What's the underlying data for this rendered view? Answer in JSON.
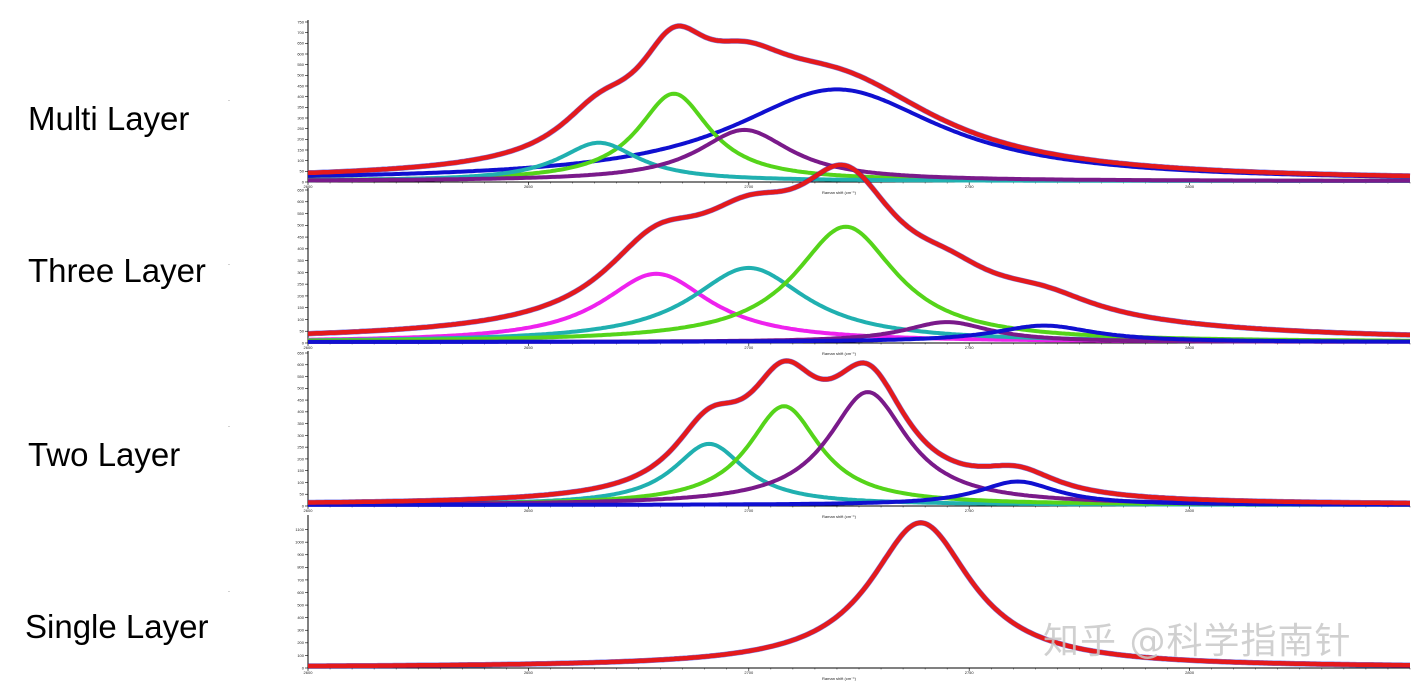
{
  "labels": {
    "multi": "Multi Layer",
    "three": "Three Layer",
    "two": "Two Layer",
    "single": "Single Layer"
  },
  "watermark": "知乎 @科学指南针",
  "colors": {
    "envelope": "#e41a1c",
    "blue": "#1010d0",
    "green": "#55d41a",
    "teal": "#20b0b0",
    "purple": "#7a1a8a",
    "magenta": "#ee22ee"
  },
  "chart_data": [
    {
      "type": "line",
      "panel": "multi",
      "xlabel": "Raman shift (cm⁻¹)",
      "ylabel": "",
      "xlim": [
        2600,
        2850
      ],
      "xticks": [
        2600,
        2650,
        2700,
        2750,
        2800
      ],
      "ylim": [
        0,
        750
      ],
      "yticks": [
        0,
        50,
        100,
        150,
        200,
        250,
        300,
        350,
        400,
        450,
        500,
        550,
        600,
        650,
        700,
        750
      ],
      "envelope": {
        "color": "red",
        "components": [
          "blue",
          "green",
          "teal",
          "purple"
        ]
      },
      "components": [
        {
          "color": "blue",
          "center": 2720,
          "height": 430,
          "fwhm": 58
        },
        {
          "color": "green",
          "center": 2683,
          "height": 410,
          "fwhm": 20
        },
        {
          "color": "teal",
          "center": 2666,
          "height": 180,
          "fwhm": 22
        },
        {
          "color": "purple",
          "center": 2699,
          "height": 240,
          "fwhm": 26
        }
      ]
    },
    {
      "type": "line",
      "panel": "three",
      "xlabel": "Raman shift (cm⁻¹)",
      "ylabel": "",
      "xlim": [
        2600,
        2850
      ],
      "xticks": [
        2600,
        2650,
        2700,
        2750,
        2800
      ],
      "ylim": [
        0,
        650
      ],
      "yticks": [
        0,
        50,
        100,
        150,
        200,
        250,
        300,
        350,
        400,
        450,
        500,
        550,
        600,
        650
      ],
      "envelope": {
        "color": "red",
        "components": [
          "magenta",
          "teal",
          "green",
          "purple",
          "blue"
        ],
        "extra": {
          "center": 2740,
          "height": 110,
          "fwhm": 90
        }
      },
      "components": [
        {
          "color": "magenta",
          "center": 2679,
          "height": 290,
          "fwhm": 30
        },
        {
          "color": "teal",
          "center": 2700,
          "height": 315,
          "fwhm": 32
        },
        {
          "color": "green",
          "center": 2722,
          "height": 490,
          "fwhm": 28
        },
        {
          "color": "purple",
          "center": 2745,
          "height": 85,
          "fwhm": 24
        },
        {
          "color": "blue",
          "center": 2767,
          "height": 70,
          "fwhm": 28
        }
      ]
    },
    {
      "type": "line",
      "panel": "two",
      "xlabel": "Raman shift (cm⁻¹)",
      "ylabel": "",
      "xlim": [
        2600,
        2850
      ],
      "xticks": [
        2600,
        2650,
        2700,
        2750,
        2800
      ],
      "ylim": [
        0,
        650
      ],
      "yticks": [
        0,
        50,
        100,
        150,
        200,
        250,
        300,
        350,
        400,
        450,
        500,
        550,
        600,
        650
      ],
      "envelope": {
        "color": "red",
        "components": [
          "teal",
          "green",
          "purple",
          "blue"
        ]
      },
      "components": [
        {
          "color": "teal",
          "center": 2691,
          "height": 260,
          "fwhm": 20
        },
        {
          "color": "green",
          "center": 2708,
          "height": 420,
          "fwhm": 20
        },
        {
          "color": "purple",
          "center": 2727,
          "height": 480,
          "fwhm": 22
        },
        {
          "color": "blue",
          "center": 2761,
          "height": 100,
          "fwhm": 22
        }
      ]
    },
    {
      "type": "line",
      "panel": "single",
      "xlabel": "Raman shift (cm⁻¹)",
      "ylabel": "",
      "xlim": [
        2600,
        2850
      ],
      "xticks": [
        2600,
        2650,
        2700,
        2750,
        2800
      ],
      "ylim": [
        0,
        1200
      ],
      "yticks": [
        0,
        100,
        200,
        300,
        400,
        500,
        600,
        700,
        800,
        900,
        1000,
        1100
      ],
      "envelope": {
        "color": "red",
        "components": [
          "blue"
        ]
      },
      "components": [
        {
          "color": "blue",
          "center": 2739,
          "height": 1150,
          "fwhm": 28
        }
      ]
    }
  ]
}
